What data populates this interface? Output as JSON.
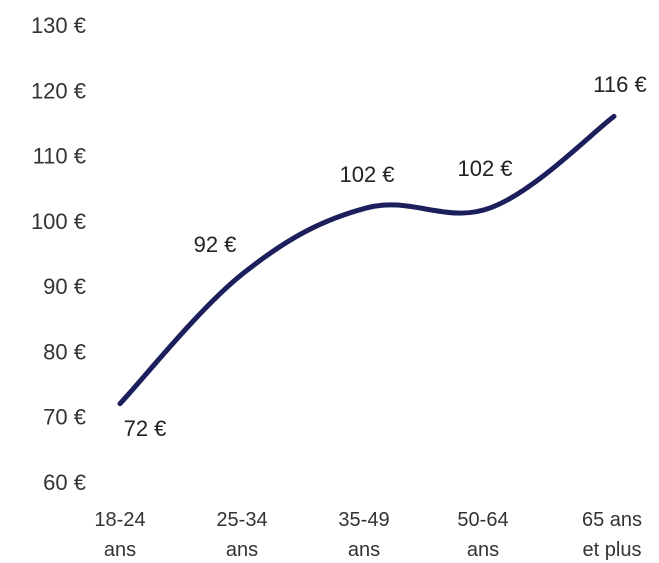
{
  "chart_data": {
    "type": "line",
    "categories": [
      [
        "18-24",
        "ans"
      ],
      [
        "25-34",
        "ans"
      ],
      [
        "35-49",
        "ans"
      ],
      [
        "50-64",
        "ans"
      ],
      [
        "65 ans",
        "et plus"
      ]
    ],
    "values": [
      72,
      92,
      102,
      102,
      116
    ],
    "data_labels": [
      "72 €",
      "92 €",
      "102 €",
      "102 €",
      "116 €"
    ],
    "y_ticks": [
      "60 €",
      "70 €",
      "80 €",
      "90 €",
      "100 €",
      "110 €",
      "120 €",
      "130 €"
    ],
    "ylim": [
      60,
      130
    ],
    "grid": false,
    "legend": "none",
    "line_color": "#1c1f5c",
    "smooth": true
  }
}
